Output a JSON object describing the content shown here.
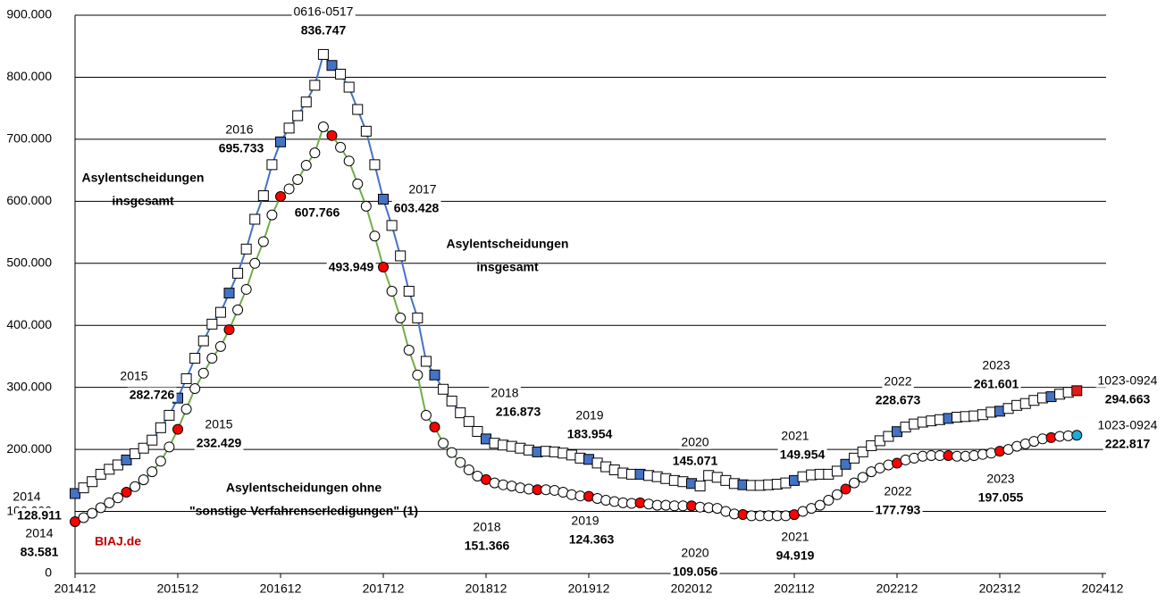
{
  "chart_data": {
    "type": "line",
    "categories": [
      "201412",
      null,
      null,
      null,
      null,
      null,
      null,
      null,
      null,
      null,
      null,
      null,
      "201512",
      null,
      null,
      null,
      null,
      null,
      null,
      null,
      null,
      null,
      null,
      null,
      "201612",
      null,
      null,
      null,
      null,
      null,
      null,
      null,
      null,
      null,
      null,
      null,
      "201712",
      null,
      null,
      null,
      null,
      null,
      null,
      null,
      null,
      null,
      null,
      null,
      "201812",
      null,
      null,
      null,
      null,
      null,
      null,
      null,
      null,
      null,
      null,
      null,
      "201912",
      null,
      null,
      null,
      null,
      null,
      null,
      null,
      null,
      null,
      null,
      null,
      "202012",
      null,
      null,
      null,
      null,
      null,
      null,
      null,
      null,
      null,
      null,
      null,
      "202112",
      null,
      null,
      null,
      null,
      null,
      null,
      null,
      null,
      null,
      null,
      null,
      "202212",
      null,
      null,
      null,
      null,
      null,
      null,
      null,
      null,
      null,
      null,
      null,
      "202312",
      null,
      null,
      null,
      null,
      null,
      null,
      null,
      null,
      null,
      null,
      null,
      "202412"
    ],
    "ylim": [
      0,
      900000
    ],
    "yticks": [
      0,
      {
        "value": 100000,
        "label": "100.000"
      },
      {
        "value": 200000,
        "label": "200.000"
      },
      {
        "value": 300000,
        "label": "300.000"
      },
      {
        "value": 400000,
        "label": "400.000"
      },
      {
        "value": 500000,
        "label": "500.000"
      },
      {
        "value": 600000,
        "label": "600.000"
      },
      {
        "value": 700000,
        "label": "700.000"
      },
      {
        "value": 800000,
        "label": "800.000"
      },
      {
        "value": 900000,
        "label": "900.000"
      }
    ],
    "grid": true,
    "series": [
      {
        "marker": "square",
        "color": "#4472c4",
        "accent_color": "#4472c4",
        "last_color": "#e31a1c",
        "values": [
          128911,
          138000,
          148000,
          160000,
          168000,
          175000,
          183000,
          193000,
          202000,
          215000,
          235000,
          255000,
          282726,
          314000,
          347000,
          375000,
          402000,
          421000,
          452000,
          484000,
          523000,
          571000,
          609000,
          659000,
          695733,
          718000,
          738000,
          760000,
          787000,
          836747,
          819000,
          805000,
          784000,
          748000,
          713000,
          659000,
          603428,
          561000,
          512000,
          455000,
          412000,
          342000,
          320000,
          297000,
          278000,
          259000,
          245000,
          229000,
          216873,
          210000,
          207000,
          205000,
          202000,
          199000,
          196000,
          197000,
          196000,
          194000,
          191000,
          186000,
          183954,
          178000,
          172000,
          167000,
          162000,
          160000,
          160000,
          158000,
          156000,
          153000,
          150000,
          148000,
          145071,
          141000,
          158000,
          155000,
          150000,
          145000,
          143000,
          142000,
          142000,
          143000,
          144000,
          146000,
          149954,
          156000,
          159000,
          160000,
          160000,
          165000,
          176000,
          186000,
          196000,
          206000,
          214000,
          221000,
          228673,
          236000,
          241000,
          244000,
          246000,
          248000,
          250000,
          252000,
          253000,
          254000,
          256000,
          260000,
          261601,
          266000,
          271000,
          274000,
          279000,
          283000,
          285000,
          289000,
          292000,
          294663,
          null,
          null,
          null
        ],
        "value_labels": [
          "128.911",
          null,
          null,
          null,
          null,
          null,
          null,
          null,
          null,
          null,
          null,
          null,
          "282.726",
          null,
          null,
          null,
          null,
          null,
          null,
          null,
          null,
          null,
          null,
          null,
          "695.733",
          null,
          null,
          null,
          null,
          "836.747",
          null,
          null,
          null,
          null,
          null,
          null,
          "603.428",
          null,
          null,
          null,
          null,
          null,
          null,
          null,
          null,
          null,
          null,
          null,
          "216.873",
          null,
          null,
          null,
          null,
          null,
          null,
          null,
          null,
          null,
          null,
          null,
          "183.954",
          null,
          null,
          null,
          null,
          null,
          null,
          null,
          null,
          null,
          null,
          null,
          "145.071",
          null,
          null,
          null,
          null,
          null,
          null,
          null,
          null,
          null,
          null,
          null,
          "149.954",
          null,
          null,
          null,
          null,
          null,
          null,
          null,
          null,
          null,
          null,
          null,
          "228.673",
          null,
          null,
          null,
          null,
          null,
          null,
          null,
          null,
          null,
          null,
          null,
          "261.601",
          null,
          null,
          null,
          null,
          null,
          null,
          null,
          null,
          "294.663",
          null,
          null,
          null
        ],
        "point_labels": [
          "2014",
          null,
          null,
          null,
          null,
          null,
          null,
          null,
          null,
          null,
          null,
          null,
          "2015",
          null,
          null,
          null,
          null,
          null,
          null,
          null,
          null,
          null,
          null,
          null,
          "2016",
          null,
          null,
          null,
          null,
          "0616-0517",
          null,
          null,
          null,
          null,
          null,
          null,
          "2017",
          null,
          null,
          null,
          null,
          null,
          null,
          null,
          null,
          null,
          null,
          null,
          "2018",
          null,
          null,
          null,
          null,
          null,
          null,
          null,
          null,
          null,
          null,
          null,
          "2019",
          null,
          null,
          null,
          null,
          null,
          null,
          null,
          null,
          null,
          null,
          null,
          "2020",
          null,
          null,
          null,
          null,
          null,
          null,
          null,
          null,
          null,
          null,
          null,
          "2021",
          null,
          null,
          null,
          null,
          null,
          null,
          null,
          null,
          null,
          null,
          null,
          "2022",
          null,
          null,
          null,
          null,
          null,
          null,
          null,
          null,
          null,
          null,
          null,
          "2023",
          null,
          null,
          null,
          null,
          null,
          null,
          null,
          null,
          "1023-0924",
          null,
          null,
          null
        ]
      },
      {
        "marker": "circle",
        "color": "#70ad47",
        "accent_color": "#ff0000",
        "last_color": "#1fa8d8",
        "values": [
          83581,
          90000,
          97000,
          106000,
          114000,
          122000,
          131000,
          140000,
          151000,
          164000,
          181000,
          204000,
          232429,
          265000,
          298000,
          323000,
          347000,
          366000,
          393000,
          425000,
          458000,
          500000,
          535000,
          578000,
          607766,
          620000,
          635000,
          658000,
          678000,
          720000,
          706000,
          687000,
          665000,
          628000,
          592000,
          544000,
          493949,
          455000,
          412000,
          360000,
          320000,
          255000,
          236000,
          210000,
          195000,
          179000,
          167000,
          157000,
          151366,
          146000,
          143000,
          141000,
          138000,
          136000,
          135000,
          135000,
          134000,
          131000,
          127000,
          125000,
          124363,
          121000,
          118000,
          116000,
          114000,
          113000,
          114000,
          112000,
          110000,
          110000,
          109000,
          109000,
          109056,
          107000,
          106000,
          105000,
          100000,
          96000,
          95000,
          93000,
          93000,
          93000,
          93000,
          93000,
          94919,
          100000,
          105000,
          110000,
          118000,
          127000,
          136000,
          146000,
          155000,
          164000,
          170000,
          175000,
          177793,
          183000,
          186000,
          189000,
          190000,
          190000,
          190000,
          189000,
          189000,
          190000,
          192000,
          194000,
          197055,
          200000,
          205000,
          209000,
          213000,
          217000,
          219000,
          221000,
          222000,
          222817,
          null,
          null,
          null
        ],
        "value_labels": [
          "83.581",
          null,
          null,
          null,
          null,
          null,
          null,
          null,
          null,
          null,
          null,
          null,
          "232.429",
          null,
          null,
          null,
          null,
          null,
          null,
          null,
          null,
          null,
          null,
          null,
          "607.766",
          null,
          null,
          null,
          null,
          null,
          null,
          null,
          null,
          null,
          null,
          null,
          "493.949",
          null,
          null,
          null,
          null,
          null,
          null,
          null,
          null,
          null,
          null,
          null,
          "151.366",
          null,
          null,
          null,
          null,
          null,
          null,
          null,
          null,
          null,
          null,
          null,
          "124.363",
          null,
          null,
          null,
          null,
          null,
          null,
          null,
          null,
          null,
          null,
          null,
          "109.056",
          null,
          null,
          null,
          null,
          null,
          null,
          null,
          null,
          null,
          null,
          null,
          "94.919",
          null,
          null,
          null,
          null,
          null,
          null,
          null,
          null,
          null,
          null,
          null,
          "177.793",
          null,
          null,
          null,
          null,
          null,
          null,
          null,
          null,
          null,
          null,
          null,
          "197.055",
          null,
          null,
          null,
          null,
          null,
          null,
          null,
          null,
          "222.817",
          null,
          null,
          null
        ],
        "point_labels": [
          "2014",
          null,
          null,
          null,
          null,
          null,
          null,
          null,
          null,
          null,
          null,
          null,
          "2015",
          null,
          null,
          null,
          null,
          null,
          null,
          null,
          null,
          null,
          null,
          null,
          null,
          null,
          null,
          null,
          null,
          null,
          null,
          null,
          null,
          null,
          null,
          null,
          null,
          null,
          null,
          null,
          null,
          null,
          null,
          null,
          null,
          null,
          null,
          null,
          "2018",
          null,
          null,
          null,
          null,
          null,
          null,
          null,
          null,
          null,
          null,
          null,
          "2019",
          null,
          null,
          null,
          null,
          null,
          null,
          null,
          null,
          null,
          null,
          null,
          "2020",
          null,
          null,
          null,
          null,
          null,
          null,
          null,
          null,
          null,
          null,
          null,
          "2021",
          null,
          null,
          null,
          null,
          null,
          null,
          null,
          null,
          null,
          null,
          null,
          "2022",
          null,
          null,
          null,
          null,
          null,
          null,
          null,
          null,
          null,
          null,
          null,
          "2023",
          null,
          null,
          null,
          null,
          null,
          null,
          null,
          null,
          "1023-0924",
          null,
          null,
          null
        ]
      }
    ],
    "annotations": [
      [
        "Asylentscheidungen",
        "insgesamt"
      ],
      [
        "Asylentscheidungen",
        "insgesamt"
      ],
      [
        "Asylentscheidungen ohne",
        "\"sonstige Verfahrenserledigungen\" (1)"
      ]
    ],
    "source": "BIAJ.de"
  }
}
